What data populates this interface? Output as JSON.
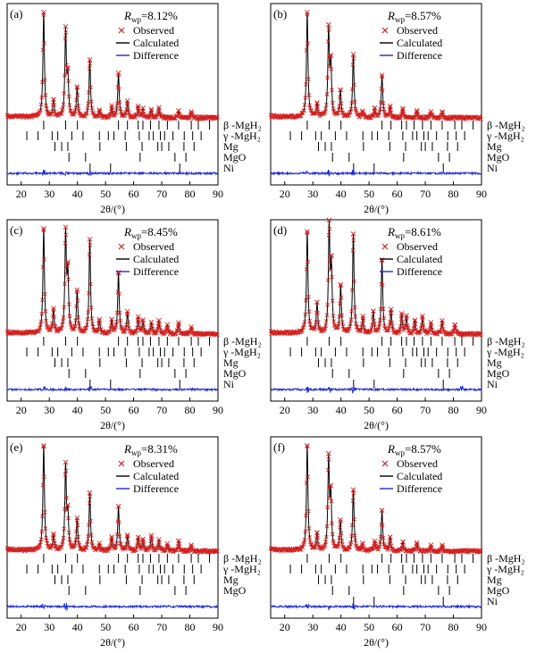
{
  "figure": {
    "legend_labels": {
      "observed": "Observed",
      "calculated": "Calculated",
      "difference": "Difference"
    },
    "colors": {
      "observed": "#d42020",
      "calculated": "#000000",
      "difference": "#1c2bd6",
      "axis": "#000000"
    },
    "xlabel": "2θ/(°)",
    "xticks": [
      20,
      30,
      40,
      50,
      60,
      70,
      80,
      90
    ],
    "xlim": [
      15,
      90
    ]
  },
  "chart_data": [
    {
      "type": "scatter",
      "panel_label": "(a)",
      "rwp_symbol": "R",
      "rwp_sub": "wp",
      "rwp_value": "=8.12%",
      "phases": [
        "β -MgH₂",
        "γ -MgH₂",
        "Mg",
        "MgO",
        "Ni"
      ],
      "peaks": [
        {
          "x": 28.0,
          "h": 1.0
        },
        {
          "x": 31.5,
          "h": 0.15
        },
        {
          "x": 35.8,
          "h": 0.82
        },
        {
          "x": 36.6,
          "h": 0.35
        },
        {
          "x": 39.9,
          "h": 0.28
        },
        {
          "x": 44.4,
          "h": 0.55
        },
        {
          "x": 47.8,
          "h": 0.06
        },
        {
          "x": 52.2,
          "h": 0.1
        },
        {
          "x": 54.6,
          "h": 0.42
        },
        {
          "x": 57.8,
          "h": 0.15
        },
        {
          "x": 61.6,
          "h": 0.1
        },
        {
          "x": 63.3,
          "h": 0.08
        },
        {
          "x": 66.3,
          "h": 0.07
        },
        {
          "x": 69.0,
          "h": 0.09
        },
        {
          "x": 76.0,
          "h": 0.06
        },
        {
          "x": 80.5,
          "h": 0.05
        }
      ],
      "ticks": [
        [
          28,
          35.8,
          40,
          54.6,
          57.8,
          61.6,
          63.3,
          66,
          69,
          72,
          76,
          80.5,
          83,
          87
        ],
        [
          22,
          26,
          31,
          33,
          38,
          42,
          47.8,
          51,
          53,
          57,
          62,
          65.5,
          67,
          69.5,
          71,
          74,
          78,
          81,
          84
        ],
        [
          32,
          34.4,
          36.6,
          48,
          57.4,
          63,
          68.6,
          70,
          72.5,
          77.9,
          81.5
        ],
        [
          37,
          42.9,
          62.3,
          74.7,
          78.6
        ],
        [
          44.5,
          51.8,
          76.4
        ]
      ],
      "diff_bumps": [
        28,
        36,
        44.4
      ]
    },
    {
      "type": "scatter",
      "panel_label": "(b)",
      "rwp_symbol": "R",
      "rwp_sub": "wp",
      "rwp_value": "=8.57%",
      "phases": [
        "β -MgH₂",
        "γ -MgH₂",
        "Mg",
        "MgO",
        "Ni"
      ],
      "peaks": [
        {
          "x": 28.0,
          "h": 1.0
        },
        {
          "x": 31.5,
          "h": 0.12
        },
        {
          "x": 35.6,
          "h": 0.82
        },
        {
          "x": 36.4,
          "h": 0.48
        },
        {
          "x": 39.8,
          "h": 0.25
        },
        {
          "x": 44.4,
          "h": 0.6
        },
        {
          "x": 47.7,
          "h": 0.05
        },
        {
          "x": 52.0,
          "h": 0.08
        },
        {
          "x": 54.6,
          "h": 0.4
        },
        {
          "x": 57.5,
          "h": 0.1
        },
        {
          "x": 62.0,
          "h": 0.08
        },
        {
          "x": 67.0,
          "h": 0.06
        },
        {
          "x": 72.0,
          "h": 0.05
        },
        {
          "x": 76.0,
          "h": 0.05
        }
      ],
      "ticks": [
        [
          28,
          35.8,
          40,
          54.6,
          57.8,
          61.6,
          63.3,
          66,
          69,
          72,
          76,
          80.5,
          83,
          87
        ],
        [
          22,
          26,
          31,
          33,
          38,
          42,
          47.8,
          51,
          53,
          57,
          62,
          65.5,
          67,
          69.5,
          71,
          74,
          78,
          81,
          84
        ],
        [
          32,
          34.4,
          36.6,
          48,
          57.4,
          63,
          68.6,
          70,
          72.5,
          77.9,
          81.5
        ],
        [
          37,
          42.9,
          62.3,
          74.7,
          78.6
        ],
        [
          44.5,
          51.8,
          76.4
        ]
      ],
      "diff_bumps": [
        28,
        35.6,
        44.4
      ]
    },
    {
      "type": "scatter",
      "panel_label": "(c)",
      "rwp_symbol": "R",
      "rwp_sub": "wp",
      "rwp_value": "=8.45%",
      "phases": [
        "β -MgH₂",
        "γ -MgH₂",
        "Mg",
        "MgO",
        "Ni"
      ],
      "peaks": [
        {
          "x": 28.0,
          "h": 1.0
        },
        {
          "x": 31.5,
          "h": 0.22
        },
        {
          "x": 35.8,
          "h": 0.94
        },
        {
          "x": 36.6,
          "h": 0.55
        },
        {
          "x": 39.9,
          "h": 0.4
        },
        {
          "x": 44.4,
          "h": 0.9
        },
        {
          "x": 47.8,
          "h": 0.12
        },
        {
          "x": 52.2,
          "h": 0.12
        },
        {
          "x": 54.6,
          "h": 0.58
        },
        {
          "x": 57.8,
          "h": 0.2
        },
        {
          "x": 61.6,
          "h": 0.15
        },
        {
          "x": 63.3,
          "h": 0.12
        },
        {
          "x": 66.3,
          "h": 0.1
        },
        {
          "x": 69.0,
          "h": 0.12
        },
        {
          "x": 72.0,
          "h": 0.08
        },
        {
          "x": 76.0,
          "h": 0.1
        },
        {
          "x": 80.5,
          "h": 0.06
        }
      ],
      "ticks": [
        [
          28,
          35.8,
          40,
          54.6,
          57.8,
          61.6,
          63.3,
          66,
          69,
          72,
          76,
          80.5,
          83,
          87
        ],
        [
          22,
          26,
          31,
          33,
          38,
          42,
          47.8,
          51,
          53,
          57,
          62,
          65.5,
          67,
          69.5,
          71,
          74,
          78,
          81,
          84
        ],
        [
          32,
          34.4,
          36.6,
          48,
          57.4,
          63,
          68.6,
          70,
          72.5,
          77.9,
          81.5
        ],
        [
          37,
          42.9,
          62.3,
          74.7,
          78.6
        ],
        [
          44.5,
          51.8,
          76.4
        ]
      ],
      "diff_bumps": [
        28,
        35.8,
        44.4
      ]
    },
    {
      "type": "scatter",
      "panel_label": "(d)",
      "rwp_symbol": "R",
      "rwp_sub": "wp",
      "rwp_value": "=8.61%",
      "phases": [
        "β -MgH₂",
        "γ -MgH₂",
        "Mg",
        "MgO",
        "Ni"
      ],
      "peaks": [
        {
          "x": 28.0,
          "h": 0.97
        },
        {
          "x": 31.5,
          "h": 0.28
        },
        {
          "x": 35.8,
          "h": 1.0
        },
        {
          "x": 36.6,
          "h": 0.6
        },
        {
          "x": 39.9,
          "h": 0.45
        },
        {
          "x": 44.4,
          "h": 0.95
        },
        {
          "x": 47.8,
          "h": 0.15
        },
        {
          "x": 51.5,
          "h": 0.2
        },
        {
          "x": 54.6,
          "h": 0.7
        },
        {
          "x": 57.8,
          "h": 0.22
        },
        {
          "x": 61.6,
          "h": 0.18
        },
        {
          "x": 63.3,
          "h": 0.16
        },
        {
          "x": 66.3,
          "h": 0.12
        },
        {
          "x": 69.0,
          "h": 0.16
        },
        {
          "x": 72.0,
          "h": 0.1
        },
        {
          "x": 76.0,
          "h": 0.12
        },
        {
          "x": 80.5,
          "h": 0.08
        }
      ],
      "ticks": [
        [
          28,
          35.8,
          40,
          54.6,
          57.8,
          61.6,
          63.3,
          66,
          69,
          72,
          76,
          80.5,
          83,
          87
        ],
        [
          22,
          26,
          31,
          33,
          38,
          42,
          47.8,
          51,
          53,
          57,
          62,
          65.5,
          67,
          69.5,
          71,
          74,
          78,
          81,
          84
        ],
        [
          32,
          34.4,
          36.6,
          48,
          57.4,
          63,
          68.6,
          70,
          72.5,
          77.9,
          81.5
        ],
        [
          37,
          42.9,
          62.3,
          74.7,
          78.6
        ],
        [
          44.5,
          51.8,
          76.4
        ]
      ],
      "diff_bumps": [
        28,
        35.8,
        44.4,
        83
      ]
    },
    {
      "type": "scatter",
      "panel_label": "(e)",
      "rwp_symbol": "R",
      "rwp_sub": "wp",
      "rwp_value": "=8.31%",
      "phases": [
        "β -MgH₂",
        "γ -MgH₂",
        "Mg",
        "MgO"
      ],
      "peaks": [
        {
          "x": 28.0,
          "h": 1.0
        },
        {
          "x": 31.5,
          "h": 0.14
        },
        {
          "x": 35.8,
          "h": 0.8
        },
        {
          "x": 36.6,
          "h": 0.32
        },
        {
          "x": 39.9,
          "h": 0.3
        },
        {
          "x": 44.4,
          "h": 0.55
        },
        {
          "x": 47.8,
          "h": 0.06
        },
        {
          "x": 52.2,
          "h": 0.12
        },
        {
          "x": 54.6,
          "h": 0.42
        },
        {
          "x": 57.8,
          "h": 0.14
        },
        {
          "x": 61.6,
          "h": 0.12
        },
        {
          "x": 63.3,
          "h": 0.1
        },
        {
          "x": 66.3,
          "h": 0.14
        },
        {
          "x": 69.0,
          "h": 0.1
        },
        {
          "x": 72.0,
          "h": 0.06
        },
        {
          "x": 76.0,
          "h": 0.09
        },
        {
          "x": 80.5,
          "h": 0.05
        }
      ],
      "ticks": [
        [
          28,
          35.8,
          40,
          54.6,
          57.8,
          61.6,
          63.3,
          66,
          69,
          72,
          76,
          80.5,
          83,
          87
        ],
        [
          22,
          26,
          31,
          33,
          38,
          42,
          47.8,
          51,
          53,
          57,
          62,
          65.5,
          67,
          69.5,
          71,
          74,
          78,
          81,
          84
        ],
        [
          32,
          34.4,
          36.6,
          48,
          57.4,
          63,
          68.6,
          70,
          72.5,
          77.9,
          81.5
        ],
        [
          37,
          42.9,
          62.3,
          74.7,
          78.6
        ]
      ],
      "diff_bumps": [
        28,
        35.8
      ]
    },
    {
      "type": "scatter",
      "panel_label": "(f)",
      "rwp_symbol": "R",
      "rwp_sub": "wp",
      "rwp_value": "=8.57%",
      "phases": [
        "β -MgH₂",
        "γ -MgH₂",
        "Mg",
        "MgO",
        "Ni"
      ],
      "peaks": [
        {
          "x": 28.0,
          "h": 1.0
        },
        {
          "x": 31.5,
          "h": 0.15
        },
        {
          "x": 35.6,
          "h": 0.86
        },
        {
          "x": 36.4,
          "h": 0.5
        },
        {
          "x": 39.8,
          "h": 0.28
        },
        {
          "x": 44.4,
          "h": 0.58
        },
        {
          "x": 47.7,
          "h": 0.06
        },
        {
          "x": 52.0,
          "h": 0.08
        },
        {
          "x": 54.6,
          "h": 0.38
        },
        {
          "x": 57.5,
          "h": 0.12
        },
        {
          "x": 62.0,
          "h": 0.08
        },
        {
          "x": 67.0,
          "h": 0.07
        },
        {
          "x": 72.0,
          "h": 0.05
        },
        {
          "x": 76.0,
          "h": 0.05
        }
      ],
      "ticks": [
        [
          28,
          35.8,
          40,
          54.6,
          57.8,
          61.6,
          63.3,
          66,
          69,
          72,
          76,
          80.5,
          83,
          87
        ],
        [
          22,
          26,
          31,
          33,
          38,
          42,
          47.8,
          51,
          53,
          57,
          62,
          65.5,
          67,
          69.5,
          71,
          74,
          78,
          81,
          84
        ],
        [
          32,
          34.4,
          36.6,
          48,
          57.4,
          63,
          68.6,
          70,
          72.5,
          77.9,
          81.5
        ],
        [
          37,
          42.9,
          62.3,
          74.7,
          78.6
        ],
        [
          44.5,
          51.8,
          76.4
        ]
      ],
      "diff_bumps": [
        28,
        35.6,
        44.4
      ]
    }
  ]
}
